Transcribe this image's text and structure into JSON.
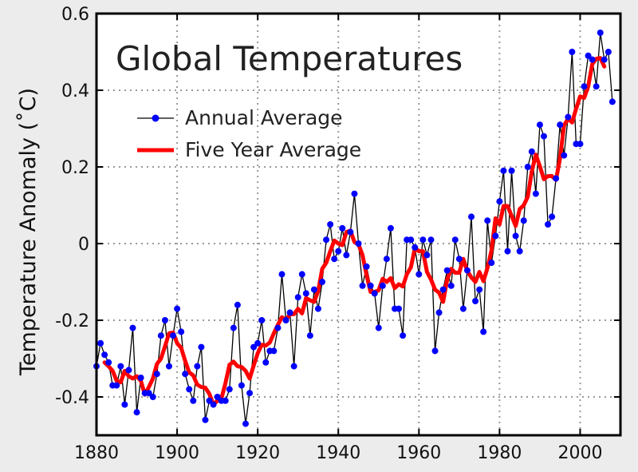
{
  "chart_data": {
    "type": "line",
    "title": "Global Temperatures",
    "xlabel": "",
    "ylabel": "Temperature Anomaly (˚C)",
    "xlim": [
      1880,
      2010
    ],
    "ylim": [
      -0.5,
      0.6
    ],
    "xticks": [
      "1880",
      "1900",
      "1920",
      "1940",
      "1960",
      "1980",
      "2000"
    ],
    "yticks": [
      "0.6",
      "0.4",
      "0.2",
      "0",
      "-0.2",
      "-0.4"
    ],
    "grid": true,
    "legend_position": "top-left",
    "colors": {
      "annual_line": "#000000",
      "annual_marker": "#0000ff",
      "five_year": "#ff0000",
      "background": "#ececec"
    },
    "x": [
      1880,
      1881,
      1882,
      1883,
      1884,
      1885,
      1886,
      1887,
      1888,
      1889,
      1890,
      1891,
      1892,
      1893,
      1894,
      1895,
      1896,
      1897,
      1898,
      1899,
      1900,
      1901,
      1902,
      1903,
      1904,
      1905,
      1906,
      1907,
      1908,
      1909,
      1910,
      1911,
      1912,
      1913,
      1914,
      1915,
      1916,
      1917,
      1918,
      1919,
      1920,
      1921,
      1922,
      1923,
      1924,
      1925,
      1926,
      1927,
      1928,
      1929,
      1930,
      1931,
      1932,
      1933,
      1934,
      1935,
      1936,
      1937,
      1938,
      1939,
      1940,
      1941,
      1942,
      1943,
      1944,
      1945,
      1946,
      1947,
      1948,
      1949,
      1950,
      1951,
      1952,
      1953,
      1954,
      1955,
      1956,
      1957,
      1958,
      1959,
      1960,
      1961,
      1962,
      1963,
      1964,
      1965,
      1966,
      1967,
      1968,
      1969,
      1970,
      1971,
      1972,
      1973,
      1974,
      1975,
      1976,
      1977,
      1978,
      1979,
      1980,
      1981,
      1982,
      1983,
      1984,
      1985,
      1986,
      1987,
      1988,
      1989,
      1990,
      1991,
      1992,
      1993,
      1994,
      1995,
      1996,
      1997,
      1998,
      1999,
      2000,
      2001,
      2002,
      2003,
      2004,
      2005,
      2006,
      2007,
      2008
    ],
    "series": [
      {
        "name": "Annual Average",
        "values": [
          -0.32,
          -0.26,
          -0.29,
          -0.31,
          -0.37,
          -0.37,
          -0.32,
          -0.42,
          -0.33,
          -0.22,
          -0.44,
          -0.35,
          -0.39,
          -0.39,
          -0.4,
          -0.34,
          -0.24,
          -0.2,
          -0.32,
          -0.24,
          -0.17,
          -0.23,
          -0.34,
          -0.38,
          -0.41,
          -0.32,
          -0.27,
          -0.46,
          -0.41,
          -0.42,
          -0.4,
          -0.41,
          -0.41,
          -0.38,
          -0.22,
          -0.16,
          -0.37,
          -0.47,
          -0.39,
          -0.27,
          -0.26,
          -0.2,
          -0.31,
          -0.28,
          -0.28,
          -0.22,
          -0.08,
          -0.2,
          -0.18,
          -0.32,
          -0.14,
          -0.08,
          -0.13,
          -0.24,
          -0.12,
          -0.17,
          -0.1,
          0.01,
          0.05,
          -0.04,
          -0.02,
          0.04,
          -0.03,
          0.03,
          0.13,
          0.0,
          -0.11,
          -0.06,
          -0.11,
          -0.13,
          -0.22,
          -0.11,
          -0.04,
          0.04,
          -0.17,
          -0.17,
          -0.24,
          0.01,
          0.01,
          -0.01,
          -0.08,
          0.01,
          -0.03,
          0.01,
          -0.28,
          -0.18,
          -0.12,
          -0.07,
          -0.11,
          0.01,
          -0.04,
          -0.17,
          -0.07,
          0.07,
          -0.15,
          -0.12,
          -0.23,
          0.06,
          -0.05,
          0.02,
          0.11,
          0.19,
          -0.02,
          0.19,
          0.02,
          -0.02,
          0.06,
          0.2,
          0.24,
          0.13,
          0.31,
          0.28,
          0.05,
          0.07,
          0.17,
          0.31,
          0.23,
          0.33,
          0.5,
          0.26,
          0.26,
          0.41,
          0.49,
          0.48,
          0.41,
          0.55,
          0.48,
          0.5,
          0.37
        ]
      },
      {
        "name": "Five Year Average"
      }
    ]
  }
}
